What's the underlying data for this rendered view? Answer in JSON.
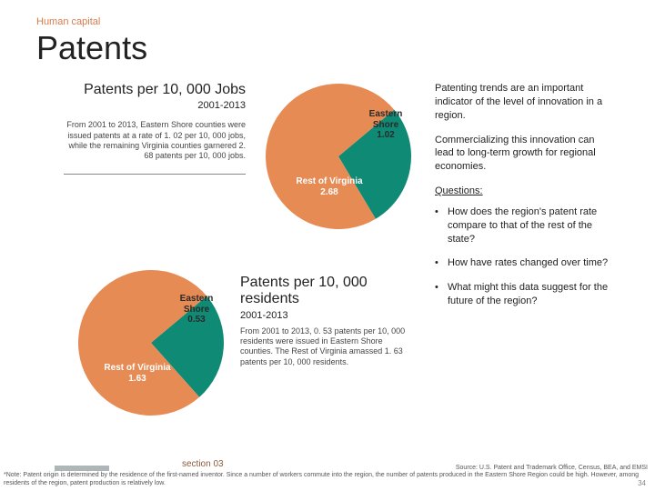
{
  "preheader": "Human capital",
  "title": "Patents",
  "chart1": {
    "title": "Patents per 10, 000 Jobs",
    "subtitle": "2001-2013",
    "desc": "From 2001 to 2013, Eastern Shore counties were issued patents at a rate of 1. 02 per 10, 000 jobs, while the remaining Virginia counties garnered 2. 68 patents per 10, 000 jobs.",
    "slices": [
      {
        "label": "Eastern Shore",
        "value": 1.02,
        "color": "#0e8a75",
        "text_color": "#2a2a2a"
      },
      {
        "label": "Rest of Virginia",
        "value": 2.68,
        "color": "#e78b55",
        "text_color": "#ffffff"
      }
    ],
    "start_angle": -40,
    "bg": "#ffffff",
    "label_fontsize": 10
  },
  "chart2": {
    "title": "Patents per 10, 000 residents",
    "subtitle": "2001-2013",
    "desc": "From 2001 to 2013, 0. 53 patents per 10, 000 residents were issued in Eastern Shore counties. The Rest of Virginia amassed 1. 63 patents per 10, 000 residents.",
    "slices": [
      {
        "label": "Eastern Shore",
        "value": 0.53,
        "color": "#0e8a75",
        "text_color": "#2a2a2a"
      },
      {
        "label": "Rest of Virginia",
        "value": 1.63,
        "color": "#e78b55",
        "text_color": "#ffffff"
      }
    ],
    "start_angle": -40,
    "bg": "#ffffff",
    "label_fontsize": 10
  },
  "right": {
    "p1": "Patenting trends are an important indicator of the level of innovation in a region.",
    "p2": "Commercializing this innovation can lead to long-term growth for regional economies.",
    "questions_heading": "Questions:",
    "questions": [
      "How does the region's patent rate compare to that of the rest of the state?",
      "How have rates changed over time?",
      "What might this data suggest for the future of the region?"
    ]
  },
  "section": "section 03",
  "source": "Source: U.S. Patent and Trademark Office, Census, BEA, and EMSI",
  "footnote": "*Note: Patent origin is determined by the residence of the first-named inventor. Since a number of workers commute into the region, the number of patents produced in the Eastern Shore Region could be high. However, among residents of the region, patent production is relatively low.",
  "pagenum": "34"
}
